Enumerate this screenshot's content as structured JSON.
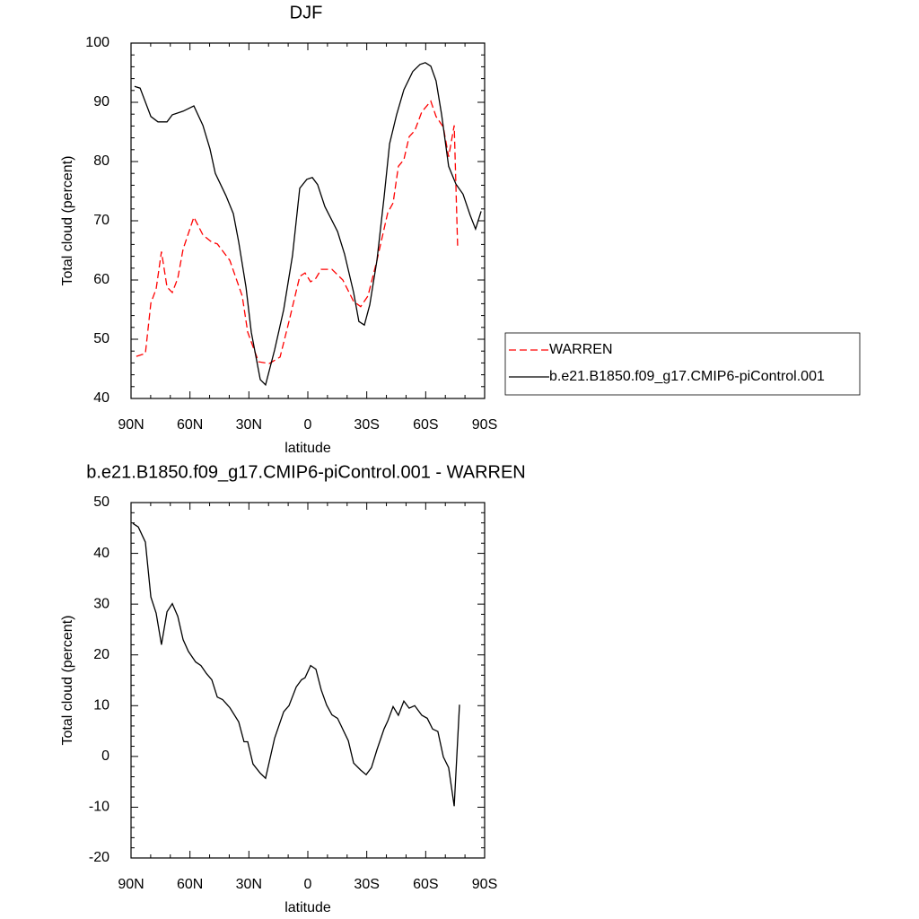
{
  "chart_data": [
    {
      "type": "line",
      "title": "DJF",
      "xlabel": "latitude",
      "ylabel": "Total cloud (percent)",
      "xlim": [
        90,
        -90
      ],
      "xticks": [
        {
          "value": 90,
          "label": "90N"
        },
        {
          "value": 60,
          "label": "60N"
        },
        {
          "value": 30,
          "label": "30N"
        },
        0,
        {
          "value": -30,
          "label": "30S"
        },
        {
          "value": -60,
          "label": "60S"
        },
        {
          "value": -90,
          "label": "90S"
        }
      ],
      "ylim": [
        40,
        100
      ],
      "yticks": [
        40,
        50,
        60,
        70,
        80,
        90,
        100
      ],
      "legend": "outside right",
      "series": [
        {
          "name": "WARREN",
          "color": "#ff0000",
          "dash": true,
          "x": [
            87.3,
            82.7,
            79.9,
            77.2,
            74.5,
            71.7,
            69.0,
            66.2,
            63.5,
            58.0,
            53.4,
            48.9,
            46.1,
            39.7,
            33.4,
            30.6,
            25.1,
            19.6,
            14.1,
            9.6,
            4.1,
            1.4,
            -1.4,
            -4.1,
            -6.8,
            -12.3,
            -17.8,
            -23.3,
            -26.9,
            -30.6,
            -35.2,
            -40.7,
            -43.4,
            -46.1,
            -48.9,
            -51.6,
            -54.4,
            -58.0,
            -62.6,
            -65.3,
            -69.0,
            -71.7,
            -74.5,
            -76.3
          ],
          "values": [
            47.1,
            47.6,
            56.1,
            58.5,
            64.8,
            58.8,
            57.9,
            60.3,
            65.2,
            70.6,
            67.6,
            66.4,
            66.1,
            63.3,
            57.3,
            51.2,
            46.2,
            45.9,
            47.0,
            53.0,
            60.6,
            61.2,
            59.7,
            60.3,
            61.8,
            61.8,
            60.0,
            56.4,
            55.5,
            57.3,
            63.3,
            71.4,
            73.0,
            79.2,
            80.3,
            84.2,
            85.2,
            88.4,
            90.2,
            87.6,
            85.8,
            80.8,
            86.1,
            65.2
          ]
        },
        {
          "name": "b.e21.B1850.f09_g17.CMIP6-piControl.001",
          "color": "#000000",
          "dash": false,
          "x": [
            88.2,
            85.4,
            79.9,
            76.3,
            71.7,
            69.0,
            63.5,
            58.0,
            53.4,
            49.8,
            47.1,
            41.6,
            37.9,
            35.2,
            31.5,
            28.8,
            24.2,
            21.5,
            16.9,
            12.3,
            7.8,
            4.1,
            0.5,
            -2.3,
            -5.0,
            -8.7,
            -15.1,
            -18.7,
            -23.3,
            -26.0,
            -28.8,
            -31.5,
            -35.2,
            -38.8,
            -41.6,
            -45.2,
            -48.9,
            -53.4,
            -57.1,
            -59.8,
            -62.6,
            -65.3,
            -68.1,
            -71.7,
            -75.4,
            -79.0,
            -82.7,
            -85.4,
            -88.2
          ],
          "values": [
            92.7,
            92.4,
            87.6,
            86.7,
            86.7,
            87.9,
            88.5,
            89.4,
            86.1,
            82.1,
            78.0,
            74.2,
            71.2,
            66.4,
            58.8,
            51.2,
            43.2,
            42.3,
            48.2,
            55.0,
            64.1,
            75.5,
            77.0,
            77.3,
            76.1,
            72.4,
            68.2,
            64.4,
            57.9,
            53.0,
            52.4,
            55.8,
            63.3,
            73.9,
            83.0,
            87.9,
            92.1,
            95.2,
            96.4,
            96.7,
            96.1,
            93.6,
            87.9,
            79.2,
            76.2,
            74.5,
            70.9,
            68.6,
            71.6
          ]
        }
      ]
    },
    {
      "type": "line",
      "title": "b.e21.B1850.f09_g17.CMIP6-piControl.001 - WARREN",
      "xlabel": "latitude",
      "ylabel": "Total cloud (percent)",
      "xlim": [
        90,
        -90
      ],
      "xticks": [
        {
          "value": 90,
          "label": "90N"
        },
        {
          "value": 60,
          "label": "60N"
        },
        {
          "value": 30,
          "label": "30N"
        },
        0,
        {
          "value": -30,
          "label": "30S"
        },
        {
          "value": -60,
          "label": "60S"
        },
        {
          "value": -90,
          "label": "90S"
        }
      ],
      "ylim": [
        -20,
        50
      ],
      "yticks": [
        -20,
        -10,
        0,
        10,
        20,
        30,
        40,
        50
      ],
      "series": [
        {
          "color": "#000000",
          "dash": false,
          "x": [
            89.1,
            86.3,
            82.7,
            79.9,
            77.2,
            74.5,
            71.7,
            69.0,
            66.2,
            63.5,
            60.8,
            57.1,
            54.4,
            51.6,
            48.9,
            46.1,
            43.4,
            39.7,
            35.2,
            32.5,
            30.6,
            27.9,
            24.2,
            21.5,
            16.9,
            12.3,
            9.6,
            5.9,
            3.2,
            1.4,
            -1.4,
            -4.1,
            -6.8,
            -9.6,
            -12.3,
            -15.1,
            -20.6,
            -23.3,
            -26.9,
            -29.7,
            -32.4,
            -35.2,
            -38.8,
            -40.7,
            -43.4,
            -46.1,
            -48.9,
            -51.6,
            -54.4,
            -58.0,
            -60.8,
            -63.5,
            -66.2,
            -69.0,
            -71.7,
            -74.5,
            -77.2
          ],
          "values": [
            45.9,
            45.2,
            42.2,
            31.4,
            28.2,
            22.0,
            28.5,
            30.1,
            27.6,
            23.0,
            20.7,
            18.6,
            17.9,
            16.3,
            15.1,
            11.7,
            11.2,
            9.6,
            6.8,
            2.9,
            2.9,
            -1.5,
            -3.3,
            -4.3,
            3.6,
            8.8,
            10.0,
            13.7,
            15.1,
            15.5,
            17.9,
            17.2,
            13.1,
            10.1,
            8.2,
            7.5,
            3.1,
            -1.3,
            -2.7,
            -3.6,
            -2.2,
            1.3,
            5.4,
            7.0,
            9.8,
            8.1,
            10.9,
            9.5,
            10.0,
            8.1,
            7.5,
            5.4,
            4.9,
            -0.1,
            -2.2,
            -9.8,
            10.2
          ]
        }
      ]
    }
  ]
}
